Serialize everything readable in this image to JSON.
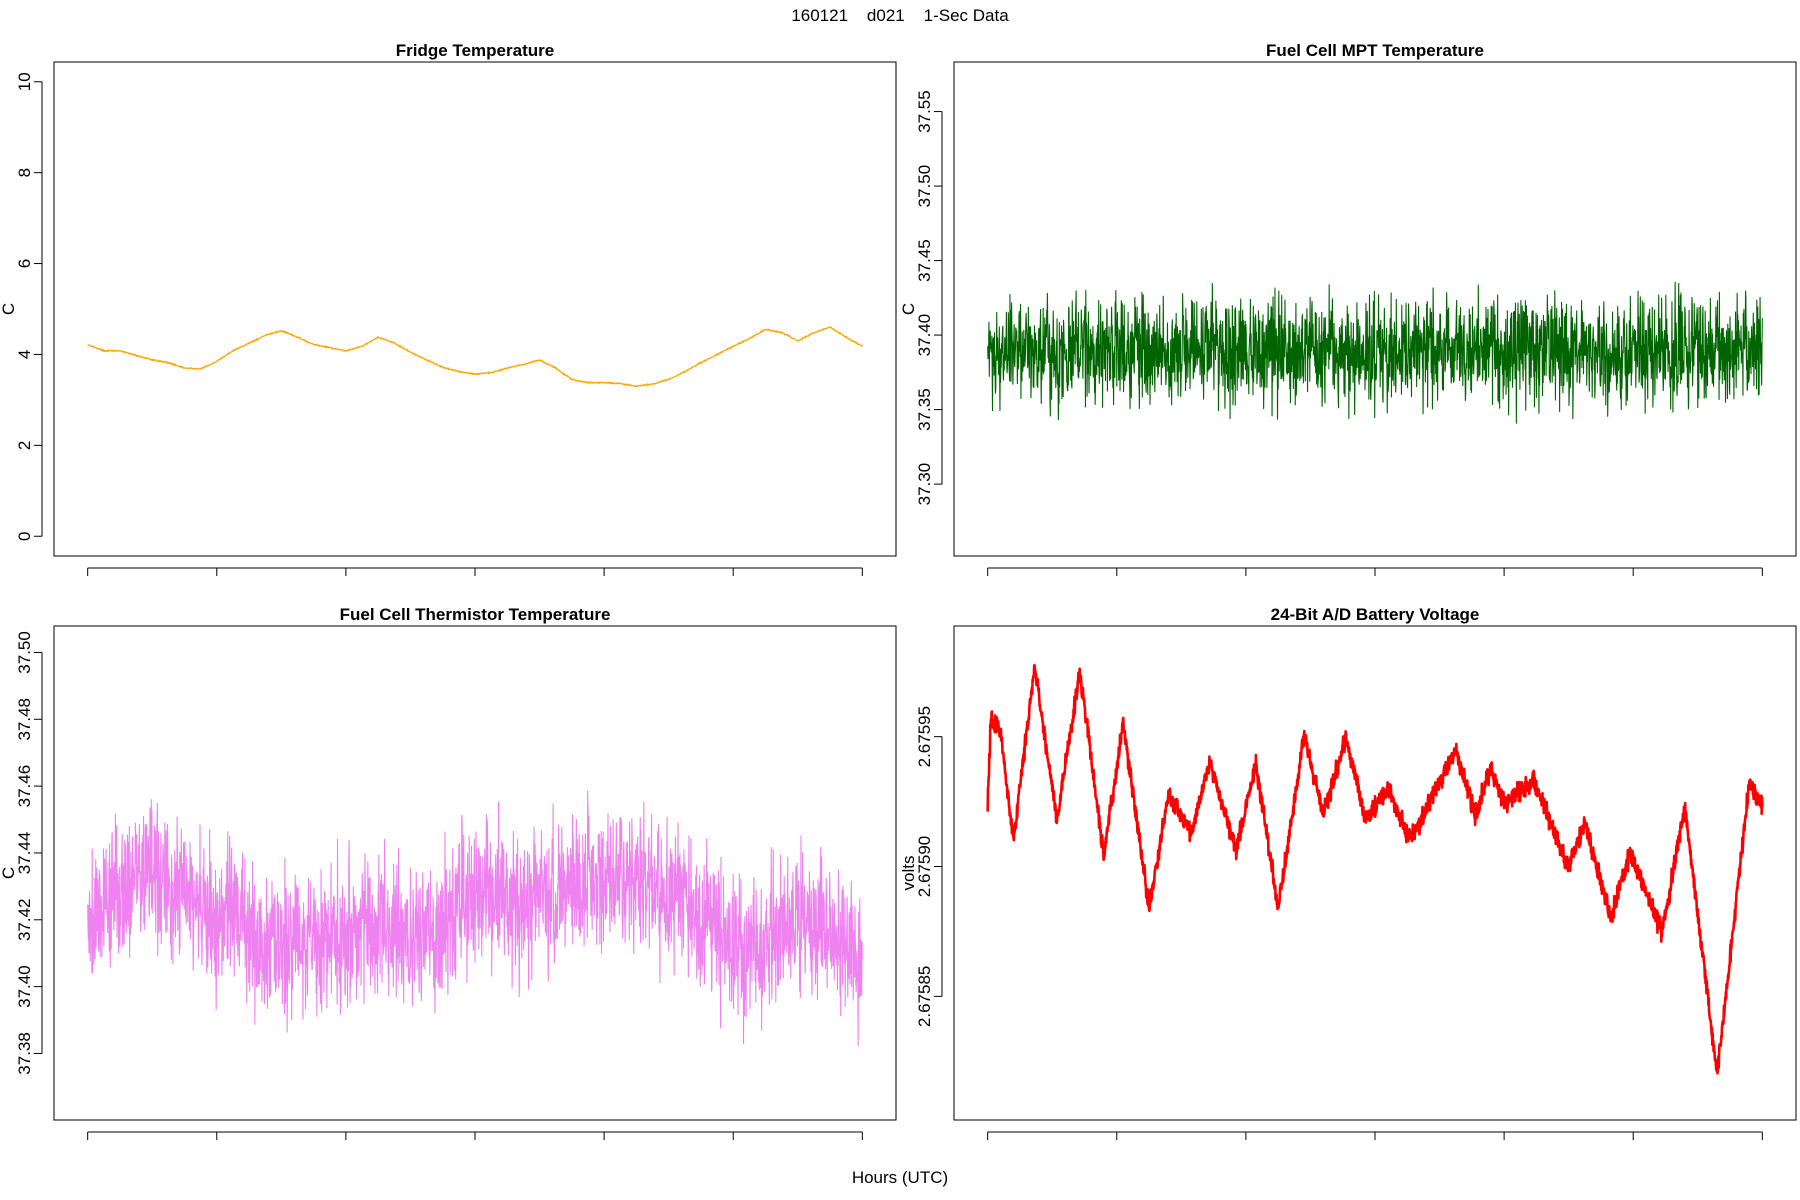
{
  "page": {
    "title": "160121    d021    1-Sec Data",
    "xlabel": "Hours (UTC)"
  },
  "chart_data": [
    {
      "type": "line",
      "title": "Fridge Temperature",
      "xlabel": "Hours (UTC)",
      "ylabel": "C",
      "color": "#FFA500",
      "noise": 0.015,
      "xlim": [
        0,
        24
      ],
      "ylim": [
        0,
        10
      ],
      "xticks": [
        0,
        4,
        8,
        12,
        16,
        20,
        24
      ],
      "yticks": [
        0,
        2,
        4,
        6,
        8,
        10
      ],
      "x": [
        0,
        0.5,
        1,
        1.5,
        2,
        2.5,
        3,
        3.5,
        4,
        4.5,
        5,
        5.5,
        6,
        6.5,
        7,
        7.5,
        8,
        8.5,
        9,
        9.5,
        10,
        10.5,
        11,
        11.5,
        12,
        12.5,
        13,
        13.5,
        14,
        14.5,
        15,
        15.5,
        16,
        16.5,
        17,
        17.5,
        18,
        18.5,
        19,
        19.5,
        20,
        20.5,
        21,
        21.5,
        22,
        22.5,
        23,
        23.5,
        24
      ],
      "y": [
        4.22,
        4.08,
        4.08,
        3.98,
        3.88,
        3.82,
        3.7,
        3.68,
        3.85,
        4.08,
        4.25,
        4.42,
        4.52,
        4.38,
        4.22,
        4.15,
        4.08,
        4.18,
        4.38,
        4.25,
        4.05,
        3.88,
        3.72,
        3.62,
        3.57,
        3.6,
        3.7,
        3.78,
        3.88,
        3.7,
        3.45,
        3.38,
        3.38,
        3.36,
        3.3,
        3.35,
        3.45,
        3.62,
        3.82,
        4.0,
        4.18,
        4.35,
        4.55,
        4.48,
        4.3,
        4.48,
        4.6,
        4.38,
        4.18
      ]
    },
    {
      "type": "line",
      "title": "Fuel Cell MPT Temperature",
      "xlabel": "Hours (UTC)",
      "ylabel": "C",
      "color": "#006400",
      "noise": 0.03,
      "xlim": [
        0,
        24
      ],
      "ylim": [
        37.265,
        37.57
      ],
      "xticks": [
        0,
        4,
        8,
        12,
        16,
        20,
        24
      ],
      "yticks": [
        37.3,
        37.35,
        37.4,
        37.45,
        37.5,
        37.55
      ],
      "ytick_labels": [
        "37.30",
        "37.35",
        "37.40",
        "37.45",
        "37.50",
        "37.55"
      ],
      "x": [
        0,
        0.5,
        1,
        1.5,
        2,
        2.5,
        3,
        3.5,
        4,
        4.5,
        5,
        5.5,
        6,
        6.5,
        7,
        7.5,
        8,
        8.5,
        9,
        9.5,
        10,
        10.5,
        11,
        11.5,
        12,
        12.5,
        13,
        13.5,
        14,
        14.5,
        15,
        15.5,
        16,
        16.5,
        17,
        17.5,
        18,
        18.5,
        19,
        19.5,
        20,
        20.5,
        21,
        21.5,
        22,
        22.5,
        23,
        23.5,
        24
      ],
      "y": [
        37.39,
        37.39,
        37.39,
        37.39,
        37.39,
        37.39,
        37.39,
        37.39,
        37.39,
        37.39,
        37.39,
        37.39,
        37.39,
        37.39,
        37.39,
        37.39,
        37.39,
        37.39,
        37.39,
        37.39,
        37.39,
        37.39,
        37.39,
        37.39,
        37.39,
        37.39,
        37.39,
        37.39,
        37.39,
        37.39,
        37.39,
        37.39,
        37.39,
        37.39,
        37.39,
        37.39,
        37.39,
        37.39,
        37.39,
        37.39,
        37.39,
        37.39,
        37.39,
        37.39,
        37.39,
        37.39,
        37.39,
        37.39,
        37.39
      ]
    },
    {
      "type": "line",
      "title": "Fuel Cell Thermistor Temperature",
      "xlabel": "Hours (UTC)",
      "ylabel": "C",
      "color": "#EE82EE",
      "noise": 0.018,
      "xlim": [
        0,
        24
      ],
      "ylim": [
        37.366,
        37.502
      ],
      "xticks": [
        0,
        4,
        8,
        12,
        16,
        20,
        24
      ],
      "yticks": [
        37.38,
        37.4,
        37.42,
        37.44,
        37.46,
        37.48,
        37.5
      ],
      "ytick_labels": [
        "37.38",
        "37.40",
        "37.42",
        "37.44",
        "37.46",
        "37.48",
        "37.50"
      ],
      "x": [
        0,
        0.5,
        1,
        1.5,
        2,
        2.5,
        3,
        3.5,
        4,
        4.5,
        5,
        5.5,
        6,
        6.5,
        7,
        7.5,
        8,
        8.5,
        9,
        9.5,
        10,
        10.5,
        11,
        11.5,
        12,
        12.5,
        13,
        13.5,
        14,
        14.5,
        15,
        15.5,
        16,
        16.5,
        17,
        17.5,
        18,
        18.5,
        19,
        19.5,
        20,
        20.5,
        21,
        21.5,
        22,
        22.5,
        23,
        23.5,
        24
      ],
      "y": [
        37.422,
        37.425,
        37.43,
        37.433,
        37.435,
        37.428,
        37.43,
        37.422,
        37.418,
        37.425,
        37.415,
        37.412,
        37.413,
        37.416,
        37.415,
        37.414,
        37.416,
        37.42,
        37.418,
        37.417,
        37.416,
        37.414,
        37.418,
        37.425,
        37.43,
        37.428,
        37.427,
        37.425,
        37.424,
        37.428,
        37.432,
        37.434,
        37.433,
        37.432,
        37.433,
        37.43,
        37.428,
        37.425,
        37.42,
        37.415,
        37.412,
        37.41,
        37.413,
        37.417,
        37.422,
        37.42,
        37.418,
        37.412,
        37.408
      ]
    },
    {
      "type": "line",
      "title": "24-Bit A/D Battery Voltage",
      "xlabel": "Hours (UTC)",
      "ylabel": "volts",
      "color": "#FF0000",
      "noise": 3e-06,
      "xlim": [
        0,
        24
      ],
      "ylim": [
        2.67581,
        2.675985
      ],
      "xticks": [
        0,
        4,
        8,
        12,
        16,
        20,
        24
      ],
      "yticks": [
        2.67585,
        2.6759,
        2.67595
      ],
      "ytick_labels": [
        "2.67585",
        "2.67590",
        "2.67595"
      ],
      "x": [
        0,
        0.1,
        0.4,
        0.8,
        1.45,
        2.15,
        2.85,
        3.6,
        4.2,
        5.0,
        5.6,
        6.3,
        6.9,
        7.7,
        8.3,
        9.0,
        9.8,
        10.4,
        11.1,
        11.7,
        12.4,
        13.1,
        14.5,
        15.1,
        15.6,
        16.0,
        16.9,
        18.0,
        18.5,
        19.3,
        19.9,
        20.9,
        21.6,
        22.6,
        23.6,
        23.9
      ],
      "y": [
        2.675924,
        2.675957,
        2.675952,
        2.67591,
        2.675977,
        2.675918,
        2.675975,
        2.675904,
        2.675955,
        2.675884,
        2.675928,
        2.675913,
        2.67594,
        2.675906,
        2.67594,
        2.675884,
        2.67595,
        2.67592,
        2.67595,
        2.675918,
        2.67593,
        2.67591,
        2.675945,
        2.67592,
        2.675938,
        2.675924,
        2.675933,
        2.6759,
        2.675917,
        2.67588,
        2.675905,
        2.675875,
        2.675923,
        2.67582,
        2.675933,
        2.675925
      ]
    }
  ]
}
